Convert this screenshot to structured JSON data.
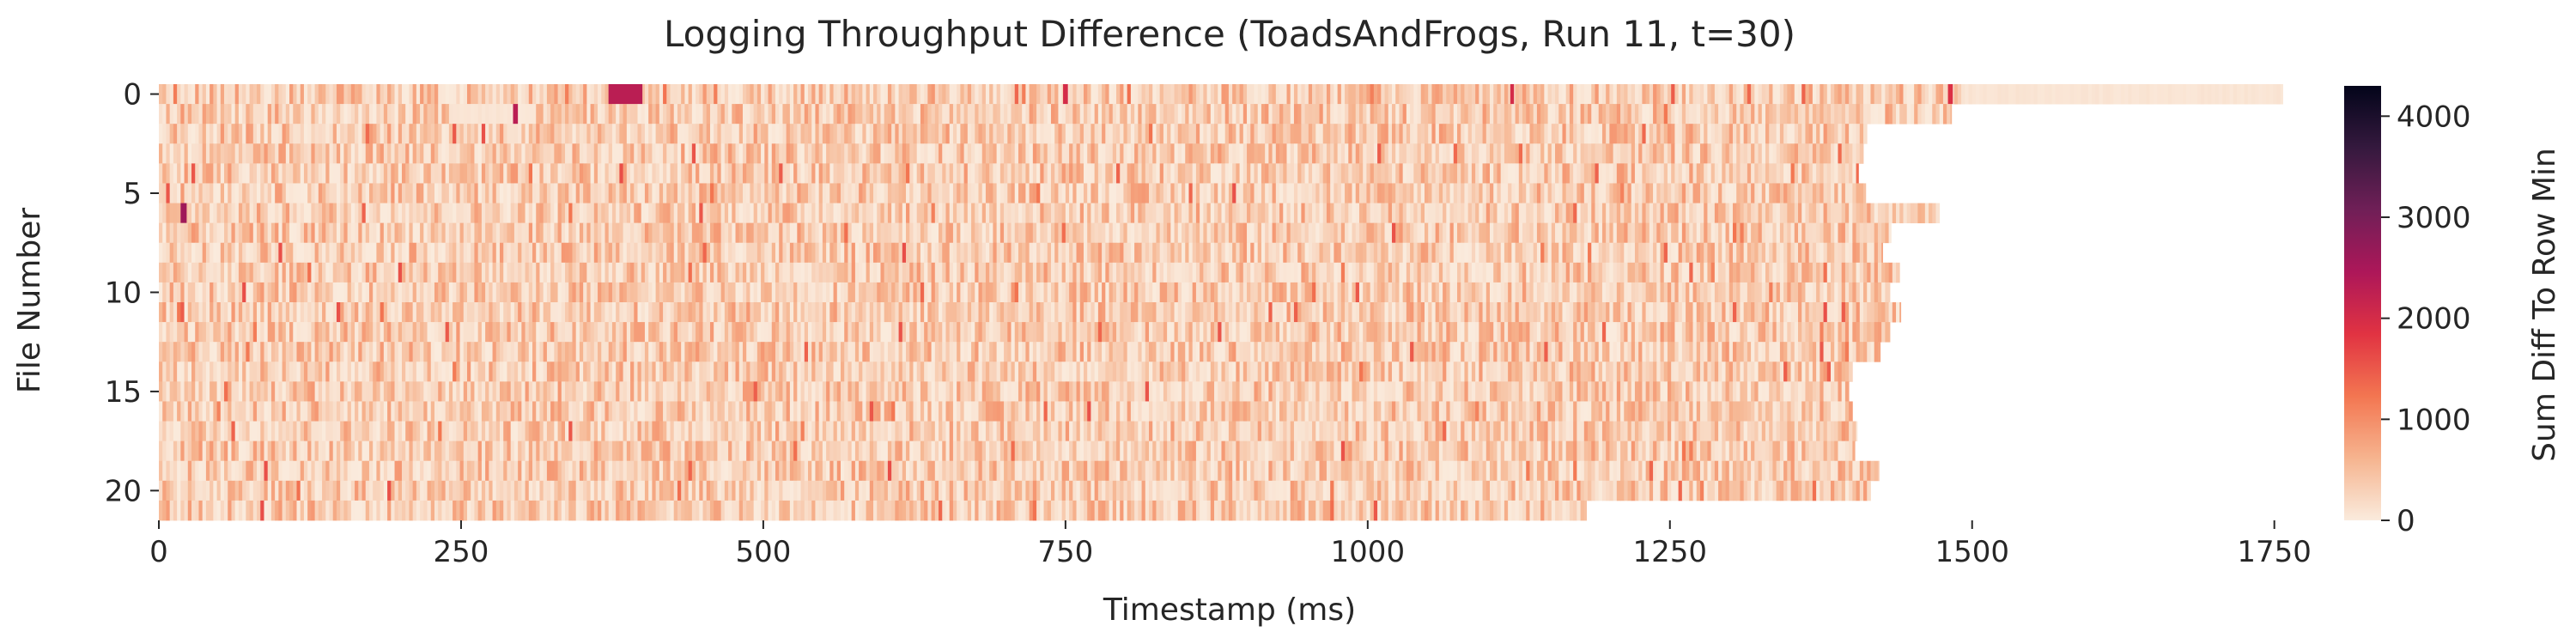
{
  "chart_data": {
    "type": "heatmap",
    "title": "Logging Throughput Difference (ToadsAndFrogs, Run 11, t=30)",
    "xlabel": "Timestamp (ms)",
    "ylabel": "File Number",
    "colorbar_label": "Sum Diff To Row Min",
    "xlim": [
      0,
      1790
    ],
    "ylim": [
      0,
      21
    ],
    "x_ticks": [
      0,
      250,
      500,
      750,
      1000,
      1250,
      1500,
      1750
    ],
    "y_ticks": [
      0,
      5,
      10,
      15,
      20
    ],
    "colorbar_range": [
      0,
      4300
    ],
    "colorbar_ticks": [
      0,
      1000,
      2000,
      3000,
      4000
    ],
    "colormap": "rocket_r",
    "colormap_stops": [
      "#faebdd",
      "#f6b48f",
      "#f37651",
      "#e13342",
      "#ad1759",
      "#701f57",
      "#35193e",
      "#03051a"
    ],
    "row_end_ms": [
      1757,
      1483,
      1413,
      1410,
      1406,
      1412,
      1473,
      1433,
      1426,
      1440,
      1432,
      1441,
      1432,
      1424,
      1401,
      1398,
      1401,
      1405,
      1403,
      1423,
      1416,
      1181
    ],
    "typical_value_range": [
      0,
      900
    ],
    "bright_spots": [
      {
        "file": 0,
        "start_ms": 372,
        "end_ms": 400,
        "value": 2300
      },
      {
        "file": 0,
        "start_ms": 748,
        "end_ms": 752,
        "value": 2000
      },
      {
        "file": 0,
        "start_ms": 1118,
        "end_ms": 1121,
        "value": 2000
      },
      {
        "file": 0,
        "start_ms": 1480,
        "end_ms": 1484,
        "value": 1900
      },
      {
        "file": 1,
        "start_ms": 293,
        "end_ms": 297,
        "value": 2300
      },
      {
        "file": 6,
        "start_ms": 18,
        "end_ms": 23,
        "value": 2600
      }
    ],
    "quiet_segments": [
      {
        "file": 0,
        "start_ms": 1490,
        "end_ms": 1757
      },
      {
        "file": 1,
        "start_ms": 240,
        "end_ms": 292
      }
    ]
  }
}
